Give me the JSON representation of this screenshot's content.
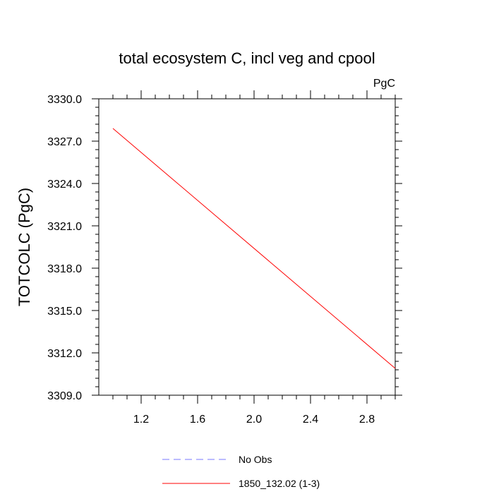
{
  "chart_data": {
    "type": "line",
    "title": "total ecosystem C, incl veg and cpool",
    "units_label": "PgC",
    "xlabel": "",
    "ylabel": "TOTCOLC  (PgC)",
    "xlim": [
      0.9,
      3.0
    ],
    "ylim": [
      3309.0,
      3330.0
    ],
    "x_ticks": [
      1.2,
      1.6,
      2.0,
      2.4,
      2.8
    ],
    "x_tick_labels": [
      "1.2",
      "1.6",
      "2.0",
      "2.4",
      "2.8"
    ],
    "y_ticks": [
      3309.0,
      3312.0,
      3315.0,
      3318.0,
      3321.0,
      3324.0,
      3327.0,
      3330.0
    ],
    "y_tick_labels": [
      "3309.0",
      "3312.0",
      "3315.0",
      "3318.0",
      "3321.0",
      "3324.0",
      "3327.0",
      "3330.0"
    ],
    "series": [
      {
        "name": "1850_132.02 (1-3)",
        "color": "#ff0000",
        "dash": "solid",
        "x": [
          1.0,
          3.0
        ],
        "y": [
          3327.9,
          3310.9
        ]
      }
    ],
    "legend": [
      {
        "label": "No Obs",
        "color": "#7777ff",
        "dash": "dashed"
      },
      {
        "label": "1850_132.02 (1-3)",
        "color": "#ff0000",
        "dash": "solid"
      }
    ],
    "legend_position": "bottom-center"
  }
}
